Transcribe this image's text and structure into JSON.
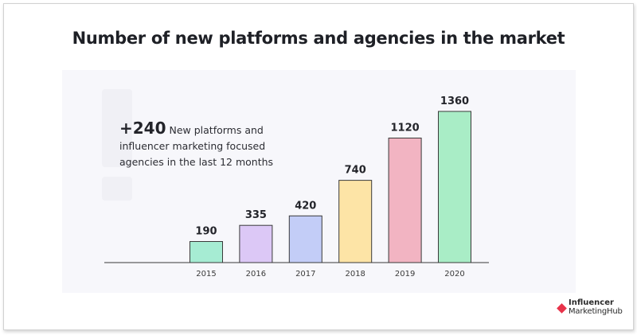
{
  "chart_data": {
    "type": "bar",
    "title": "Number of new platforms and agencies in the market",
    "categories": [
      "2015",
      "2016",
      "2017",
      "2018",
      "2019",
      "2020"
    ],
    "values": [
      190,
      335,
      420,
      740,
      1120,
      1360
    ],
    "colors": [
      "#a6ecd3",
      "#dcc8f6",
      "#c3cdf7",
      "#fde4a6",
      "#f2b4c2",
      "#a9edc6"
    ],
    "data_labels": [
      "190",
      "335",
      "420",
      "740",
      "1120",
      "1360"
    ],
    "xlabel": "",
    "ylabel": "",
    "ylim": [
      0,
      1360
    ],
    "grid": false,
    "annotation": {
      "highlight": "+240",
      "text": "New platforms and influencer marketing focused agencies in the last 12 months"
    }
  },
  "brand": {
    "line1": "Influencer",
    "line2": "MarketingHub",
    "accent": "#e8334a"
  }
}
